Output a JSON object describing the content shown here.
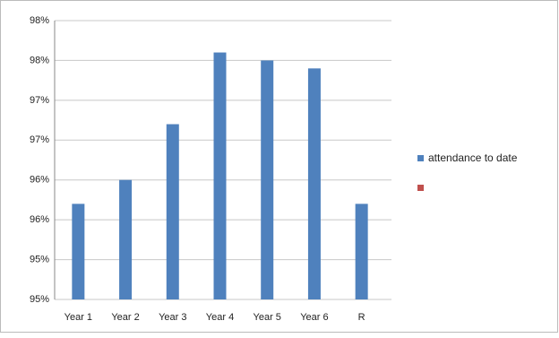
{
  "chart_data": {
    "type": "bar",
    "categories": [
      "Year 1",
      "Year 2",
      "Year 3",
      "Year 4",
      "Year 5",
      "Year 6",
      "R"
    ],
    "series": [
      {
        "name": "attendance to date",
        "color": "#4f81bd",
        "values": [
          96.2,
          96.5,
          97.2,
          98.1,
          98.0,
          97.9,
          96.2
        ]
      }
    ],
    "ylim": [
      95,
      98.5
    ],
    "yticks": [
      {
        "value": 95,
        "label": "95%"
      },
      {
        "value": 95.5,
        "label": "95%"
      },
      {
        "value": 96,
        "label": "96%"
      },
      {
        "value": 96.5,
        "label": "96%"
      },
      {
        "value": 97,
        "label": "97%"
      },
      {
        "value": 97.5,
        "label": "97%"
      },
      {
        "value": 98,
        "label": "98%"
      },
      {
        "value": 98.5,
        "label": "98%"
      }
    ],
    "grid": true
  }
}
